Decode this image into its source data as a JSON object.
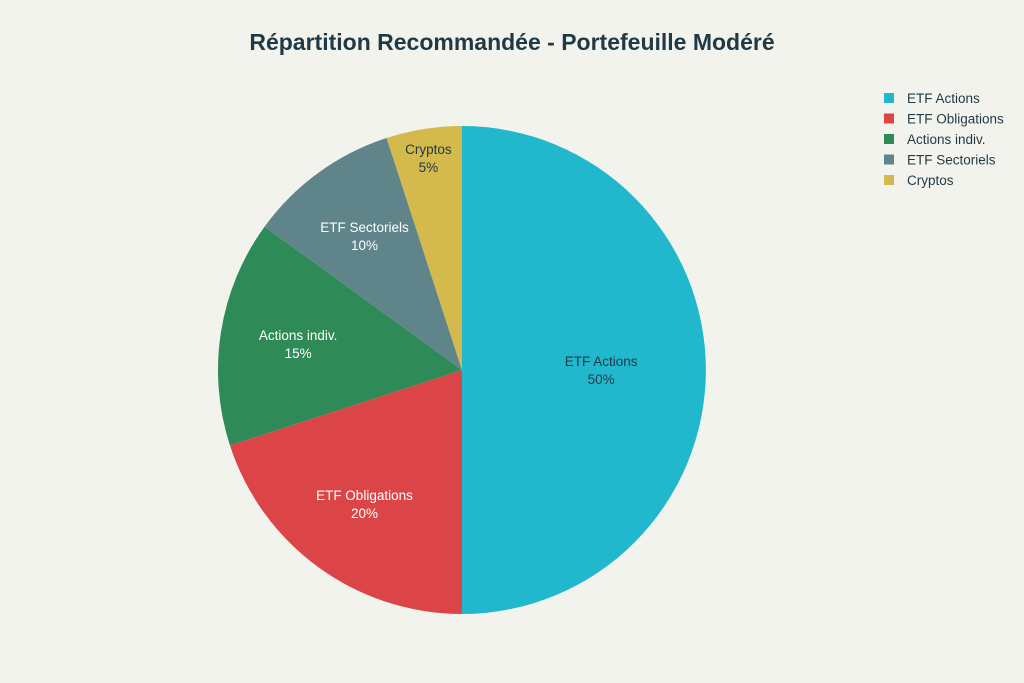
{
  "chart_data": {
    "type": "pie",
    "title": "Répartition Recommandée - Portefeuille Modéré",
    "legend_position": "top-right",
    "slices": [
      {
        "label": "ETF Actions",
        "value": 50,
        "display": "50%",
        "color": "#21b8ce",
        "text_color": "#1f3a44"
      },
      {
        "label": "ETF Obligations",
        "value": 20,
        "display": "20%",
        "color": "#dc4547",
        "text_color": "#ffffff"
      },
      {
        "label": "Actions indiv.",
        "value": 15,
        "display": "15%",
        "color": "#2e8b57",
        "text_color": "#ffffff"
      },
      {
        "label": "ETF Sectoriels",
        "value": 10,
        "display": "10%",
        "color": "#5f858a",
        "text_color": "#ffffff"
      },
      {
        "label": "Cryptos",
        "value": 5,
        "display": "5%",
        "color": "#d4b94d",
        "text_color": "#1f3a44"
      }
    ]
  }
}
